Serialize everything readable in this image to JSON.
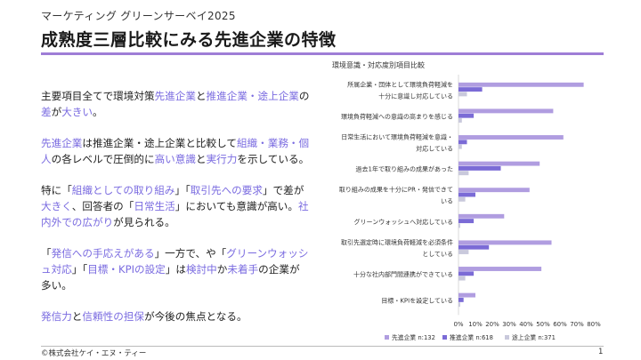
{
  "header": {
    "survey_title": "マーケティング グリーンサーベイ2025",
    "slide_title": "成熟度三層比較にみる先進企業の特徴"
  },
  "body": {
    "p1": [
      {
        "t": "主要項目全てで環境対策",
        "h": false
      },
      {
        "t": "先進企業",
        "h": true
      },
      {
        "t": "と",
        "h": false
      },
      {
        "t": "推進企業・途上企業",
        "h": true
      },
      {
        "t": "の",
        "h": false
      },
      {
        "t": "差",
        "h": true
      },
      {
        "t": "が",
        "h": false
      },
      {
        "t": "大きい",
        "h": true
      },
      {
        "t": "。",
        "h": false
      }
    ],
    "p2": [
      {
        "t": "先進企業",
        "h": true
      },
      {
        "t": "は推進企業・途上企業と比較して",
        "h": false
      },
      {
        "t": "組織・業務・個人",
        "h": true
      },
      {
        "t": "の各レベルで圧倒的に",
        "h": false
      },
      {
        "t": "高い意識",
        "h": true
      },
      {
        "t": "と",
        "h": false
      },
      {
        "t": "実行力",
        "h": true
      },
      {
        "t": "を示している。",
        "h": false
      }
    ],
    "p3": [
      {
        "t": "特に「",
        "h": false
      },
      {
        "t": "組織としての取り組み",
        "h": true
      },
      {
        "t": "」「",
        "h": false
      },
      {
        "t": "取引先への要求",
        "h": true
      },
      {
        "t": "」で差が",
        "h": false
      },
      {
        "t": "大きく",
        "h": true
      },
      {
        "t": "、回答者の「",
        "h": false
      },
      {
        "t": "日常生活",
        "h": true
      },
      {
        "t": "」においても意識が高い。",
        "h": false
      },
      {
        "t": "社内外での広がり",
        "h": true
      },
      {
        "t": "が見られる。",
        "h": false
      }
    ],
    "p4": [
      {
        "t": "「",
        "h": false
      },
      {
        "t": "発信への手応えがある",
        "h": true
      },
      {
        "t": "」一方で、や「",
        "h": false
      },
      {
        "t": "グリーンウォッシュ対応",
        "h": true
      },
      {
        "t": "」「",
        "h": false
      },
      {
        "t": "目標・KPIの設定",
        "h": true
      },
      {
        "t": "」は",
        "h": false
      },
      {
        "t": "検討中",
        "h": true
      },
      {
        "t": "か",
        "h": false
      },
      {
        "t": "未着手",
        "h": true
      },
      {
        "t": "の企業が多い。",
        "h": false
      }
    ],
    "p5": [
      {
        "t": "発信力",
        "h": true
      },
      {
        "t": "と",
        "h": false
      },
      {
        "t": "信頼性の担保",
        "h": true
      },
      {
        "t": "が今後の焦点となる。",
        "h": false
      }
    ]
  },
  "footer": {
    "copyright": "©株式会社ケイ・エヌ・ティー",
    "page_number": "1"
  },
  "chart_data": {
    "type": "bar",
    "orientation": "horizontal",
    "title": "環境意識・対応度別項目比較",
    "categories": [
      [
        "所属企業・団体として環境負荷軽減を",
        "十分に意識し対応している"
      ],
      [
        "環境負荷軽減への意識の高まりを感じる"
      ],
      [
        "日常生活において環境負荷軽減を意識・",
        "対応している"
      ],
      [
        "過去1年で取り組みの成果があった"
      ],
      [
        "取り組みの成果を十分にPR・発信できて",
        "いる"
      ],
      [
        "グリーンウォッシュへ対応している"
      ],
      [
        "取引先選定時に環境負荷軽減を必須条件",
        "としている"
      ],
      [
        "十分な社内部門間連携ができている"
      ],
      [
        "目標・KPIを設定している"
      ]
    ],
    "series": [
      {
        "name": "先進企業 n:132",
        "color": "#b09de0",
        "values": [
          74,
          56,
          62,
          48,
          42,
          27,
          55,
          49,
          10
        ]
      },
      {
        "name": "推進企業 n:618",
        "color": "#7b6bd6",
        "values": [
          14,
          9,
          5,
          25,
          10,
          9,
          18,
          9,
          3
        ]
      },
      {
        "name": "途上企業 n:371",
        "color": "#c9c9dc",
        "values": [
          5,
          2,
          2,
          6,
          4,
          1,
          6,
          4,
          1
        ]
      }
    ],
    "xlim": [
      0,
      80
    ],
    "xticks": [
      "0%",
      "10%",
      "20%",
      "30%",
      "40%",
      "50%",
      "60%",
      "70%",
      "80%"
    ],
    "grid": false,
    "legend": "bottom"
  }
}
